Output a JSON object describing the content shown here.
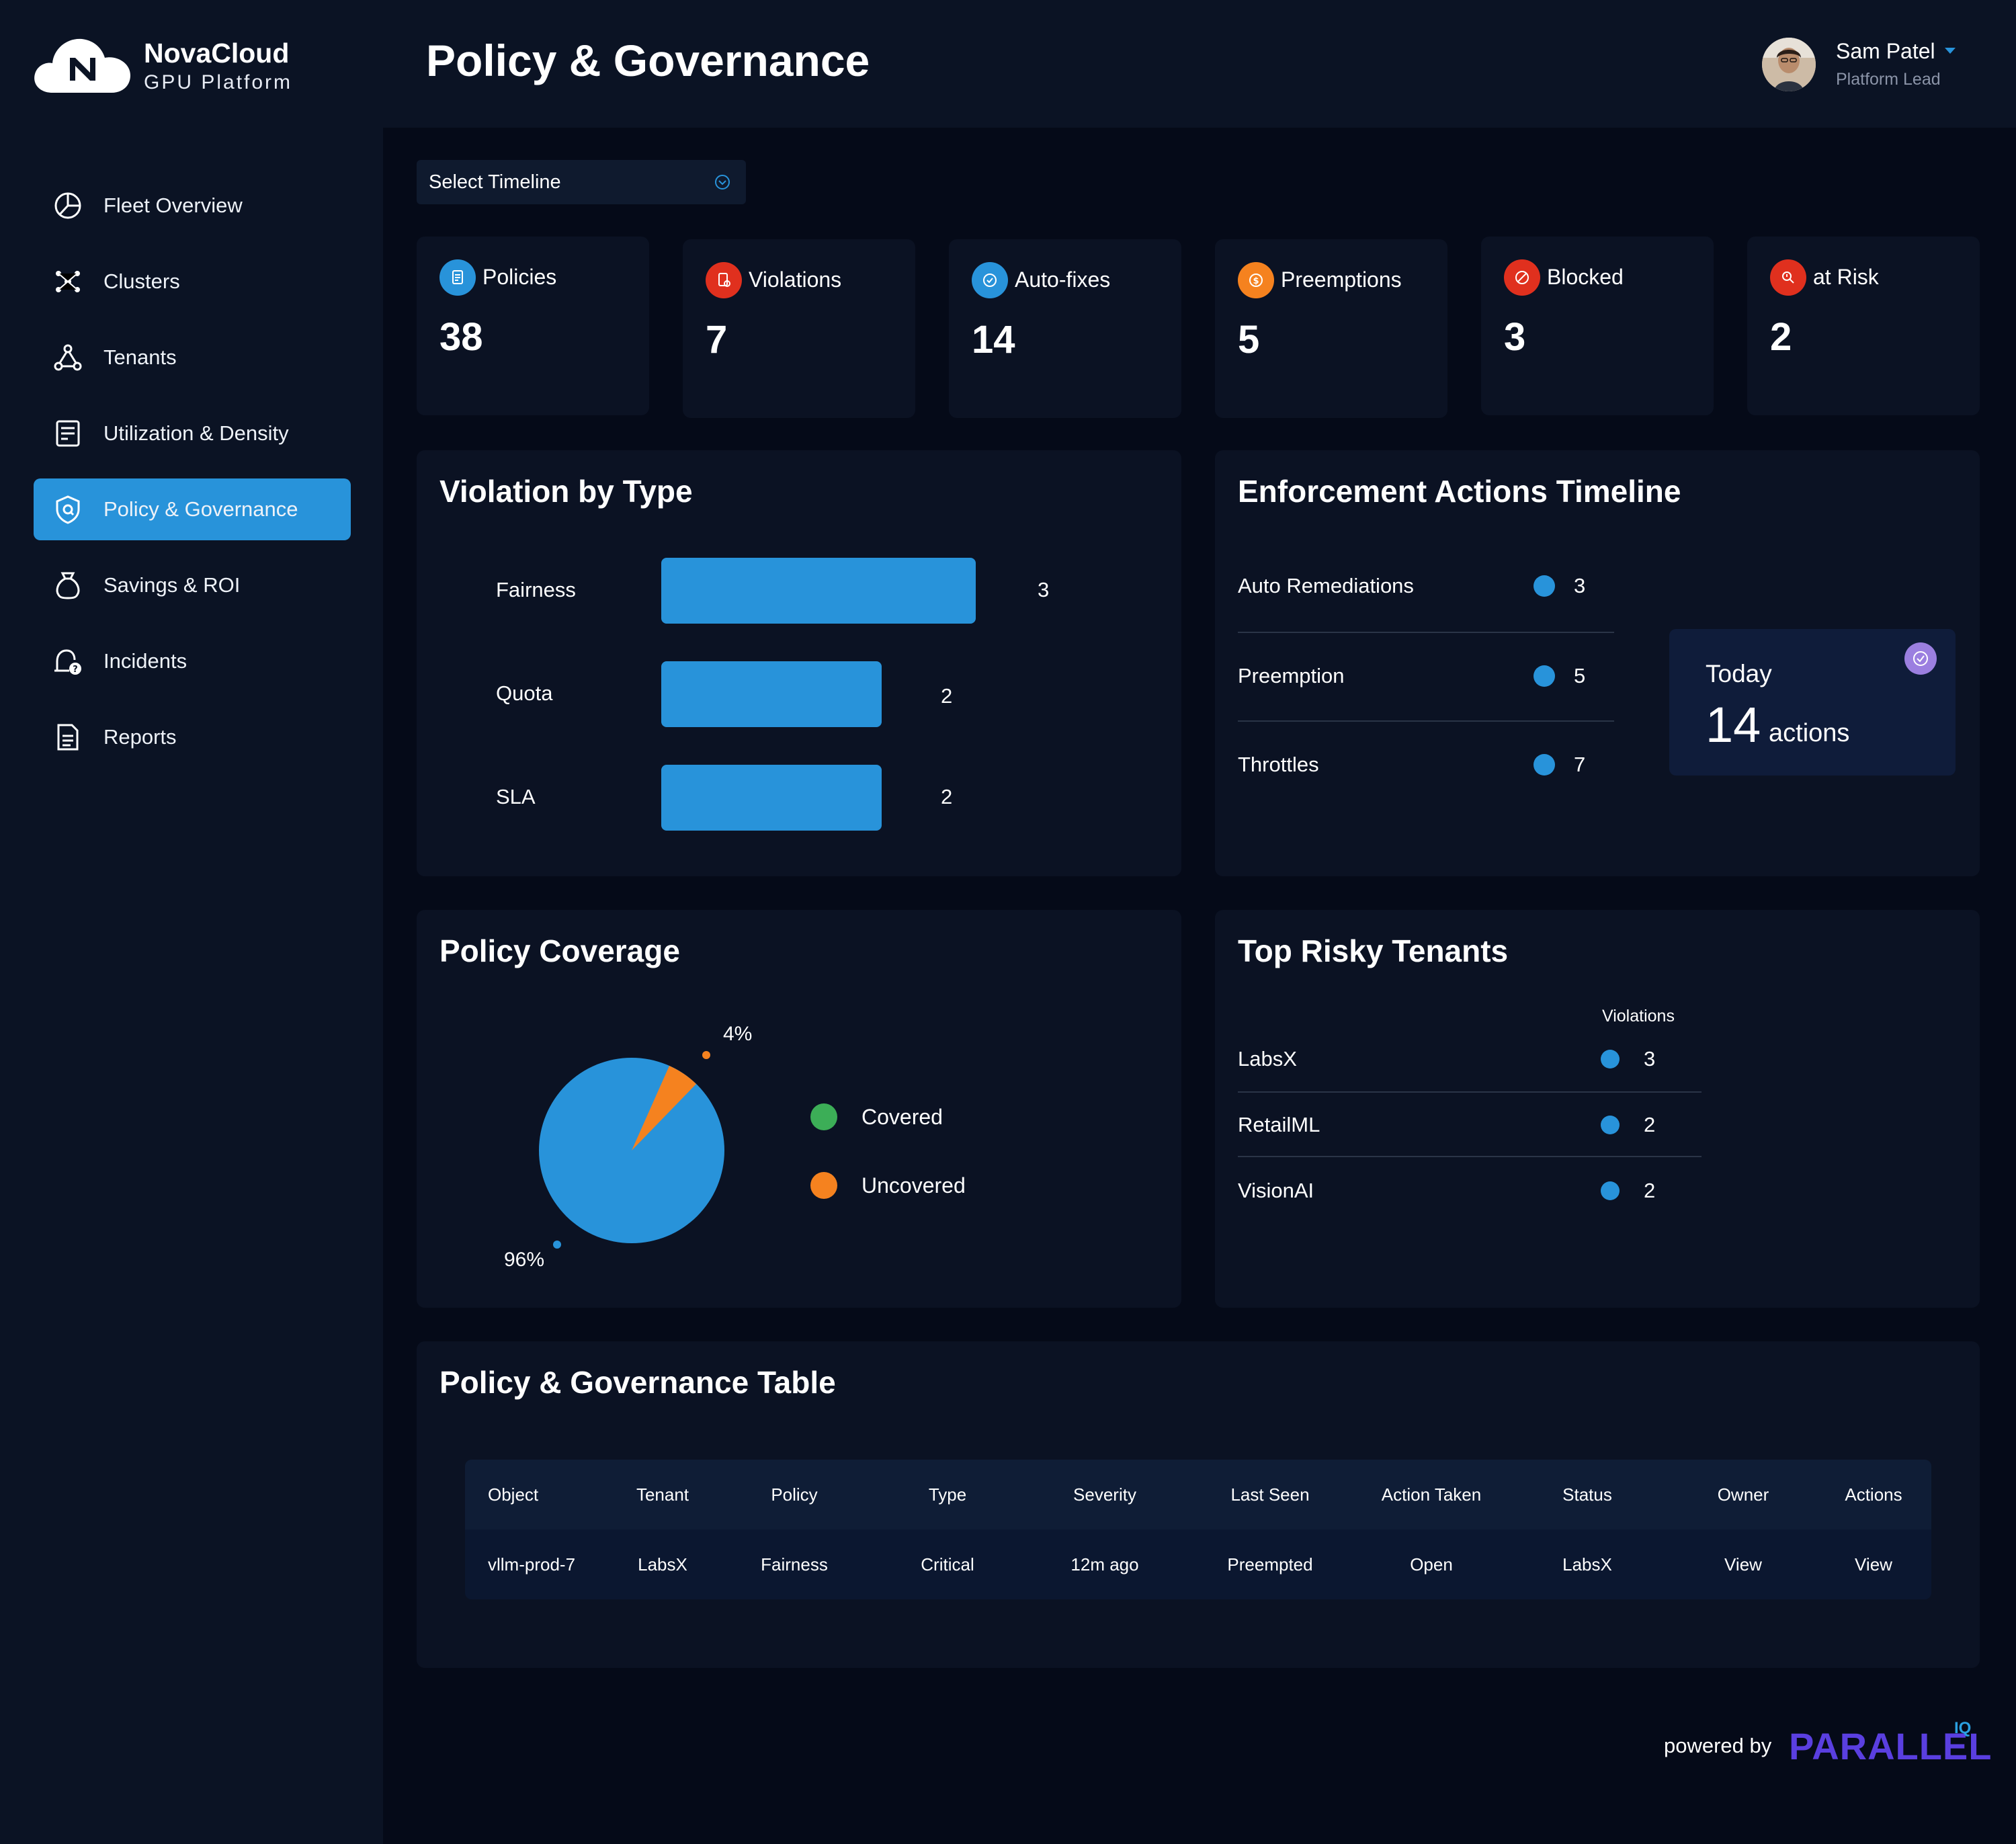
{
  "app": {
    "brand": "NovaCloud",
    "subtitle": "GPU Platform"
  },
  "sidebar": {
    "items": [
      {
        "label": "Fleet Overview",
        "icon": "pie-chart-icon",
        "active": false
      },
      {
        "label": "Clusters",
        "icon": "cluster-nodes-icon",
        "active": false
      },
      {
        "label": "Tenants",
        "icon": "tenants-network-icon",
        "active": false
      },
      {
        "label": "Utilization & Density",
        "icon": "document-chart-icon",
        "active": false
      },
      {
        "label": "Policy & Governance",
        "icon": "shield-icon",
        "active": true
      },
      {
        "label": "Savings & ROI",
        "icon": "money-bag-icon",
        "active": false
      },
      {
        "label": "Incidents",
        "icon": "incident-alert-icon",
        "active": false
      },
      {
        "label": "Reports",
        "icon": "report-icon",
        "active": false
      }
    ]
  },
  "header": {
    "title": "Policy & Governance"
  },
  "user": {
    "name": "Sam Patel",
    "role": "Platform Lead"
  },
  "timeline": {
    "placeholder": "Select Timeline"
  },
  "stats": [
    {
      "label": "Policies",
      "value": "38",
      "icon": "policy-doc-icon",
      "color": "#2893da"
    },
    {
      "label": "Violations",
      "value": "7",
      "icon": "violation-doc-icon",
      "color": "#e0301e"
    },
    {
      "label": "Auto-fixes",
      "value": "14",
      "icon": "auto-fix-icon",
      "color": "#2893da"
    },
    {
      "label": "Preemptions",
      "value": "5",
      "icon": "preemption-coin-icon",
      "color": "#f5821f"
    },
    {
      "label": "Blocked",
      "value": "3",
      "icon": "blocked-icon",
      "color": "#e0301e"
    },
    {
      "label": "at Risk",
      "value": "2",
      "icon": "risk-icon",
      "color": "#e0301e"
    }
  ],
  "violation_by_type": {
    "title": "Violation by Type",
    "rows": [
      {
        "label": "Fairness",
        "value": "3"
      },
      {
        "label": "Quota",
        "value": "2"
      },
      {
        "label": "SLA",
        "value": "2"
      }
    ]
  },
  "enforcement": {
    "title": "Enforcement Actions Timeline",
    "rows": [
      {
        "label": "Auto Remediations",
        "value": "3"
      },
      {
        "label": "Preemption",
        "value": "5"
      },
      {
        "label": "Throttles",
        "value": "7"
      }
    ],
    "today": {
      "label": "Today",
      "count": "14",
      "unit": "actions"
    }
  },
  "coverage": {
    "title": "Policy Coverage",
    "covered_label": "96%",
    "uncovered_label": "4%",
    "legend": [
      {
        "label": "Covered",
        "color": "#3cae57"
      },
      {
        "label": "Uncovered",
        "color": "#f5821f"
      }
    ]
  },
  "risky": {
    "title": "Top Risky Tenants",
    "header": "Violations",
    "rows": [
      {
        "label": "LabsX",
        "value": "3"
      },
      {
        "label": "RetailML",
        "value": "2"
      },
      {
        "label": "VisionAI",
        "value": "2"
      }
    ]
  },
  "table": {
    "title": "Policy & Governance Table",
    "columns": [
      "Object",
      "Tenant",
      "Policy",
      "Type",
      "Severity",
      "Last Seen",
      "Action Taken",
      "Status",
      "Owner",
      "Actions"
    ],
    "rows": [
      [
        "vllm-prod-7",
        "LabsX",
        "Fairness",
        "Critical",
        "12m ago",
        "Preempted",
        "Open",
        "LabsX",
        "View",
        "View"
      ]
    ]
  },
  "footer": {
    "powered_by": "powered by",
    "brand": "PARALLEL",
    "suffix": "IQ"
  },
  "colors": {
    "accent": "#2893da",
    "background": "#050a18",
    "panel": "#0b1223",
    "sidebar": "#0b1324",
    "warning": "#f5821f",
    "danger": "#e0301e"
  }
}
